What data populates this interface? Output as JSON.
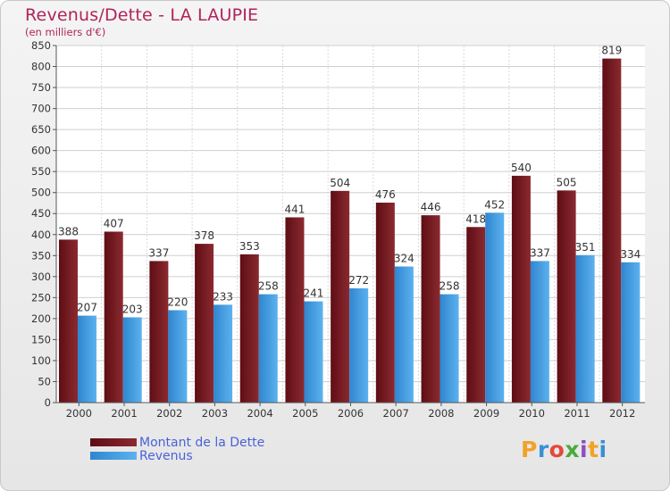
{
  "chart_data": {
    "type": "bar",
    "title": "Revenus/Dette - LA LAUPIE",
    "subtitle": "(en milliers d'€)",
    "categories": [
      "2000",
      "2001",
      "2002",
      "2003",
      "2004",
      "2005",
      "2006",
      "2007",
      "2008",
      "2009",
      "2010",
      "2011",
      "2012"
    ],
    "series": [
      {
        "name": "Montant de la Dette",
        "color": "#7a1a22",
        "values": [
          388,
          407,
          337,
          378,
          353,
          441,
          504,
          476,
          446,
          418,
          540,
          505,
          819
        ]
      },
      {
        "name": "Revenus",
        "color": "#3d95d8",
        "values": [
          207,
          203,
          220,
          233,
          258,
          241,
          272,
          324,
          258,
          452,
          337,
          351,
          334
        ]
      }
    ],
    "ylim": [
      0,
      850
    ],
    "yticks": [
      0,
      50,
      100,
      150,
      200,
      250,
      300,
      350,
      400,
      450,
      500,
      550,
      600,
      650,
      700,
      750,
      800,
      850
    ],
    "grid": true,
    "legend_position": "bottom-left"
  },
  "logo": {
    "letters": [
      "P",
      "r",
      "o",
      "x",
      "i",
      "t",
      "i"
    ],
    "colors": [
      "#f2a22a",
      "#3a8fd6",
      "#e34a3c",
      "#4aaa3a",
      "#8a4fbf",
      "#f2a22a",
      "#3a8fd6"
    ]
  }
}
